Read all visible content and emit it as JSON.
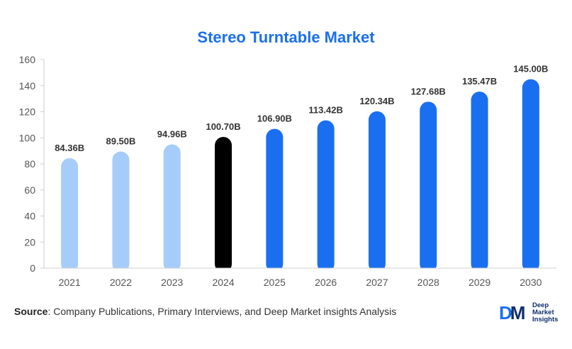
{
  "chart_data": {
    "type": "bar",
    "title": "Stereo Turntable Market",
    "categories": [
      "2021",
      "2022",
      "2023",
      "2024",
      "2025",
      "2026",
      "2027",
      "2028",
      "2029",
      "2030"
    ],
    "values": [
      84.36,
      89.5,
      94.96,
      100.7,
      106.9,
      113.42,
      120.34,
      127.68,
      135.47,
      145.0
    ],
    "value_labels": [
      "84.36B",
      "89.50B",
      "94.96B",
      "100.70B",
      "106.90B",
      "113.42B",
      "120.34B",
      "127.68B",
      "135.47B",
      "145.00B"
    ],
    "ylim": [
      0,
      160
    ],
    "yticks": [
      0,
      20,
      40,
      60,
      80,
      100,
      120,
      140,
      160
    ],
    "xlabel": "",
    "ylabel": "",
    "grid": false,
    "bar_colors": [
      "#a6cdfa",
      "#a6cdfa",
      "#a6cdfa",
      "#000000",
      "#1a6ff0",
      "#1a6ff0",
      "#1a6ff0",
      "#1a6ff0",
      "#1a6ff0",
      "#1a6ff0"
    ]
  },
  "footer": {
    "source_label": "Source",
    "source_text": ": Company Publications, Primary Interviews, and Deep Market insights Analysis"
  },
  "logo": {
    "mark_d": "D",
    "mark_m": "M",
    "line1": "Deep",
    "line2": "Market",
    "line3": "Insights"
  }
}
